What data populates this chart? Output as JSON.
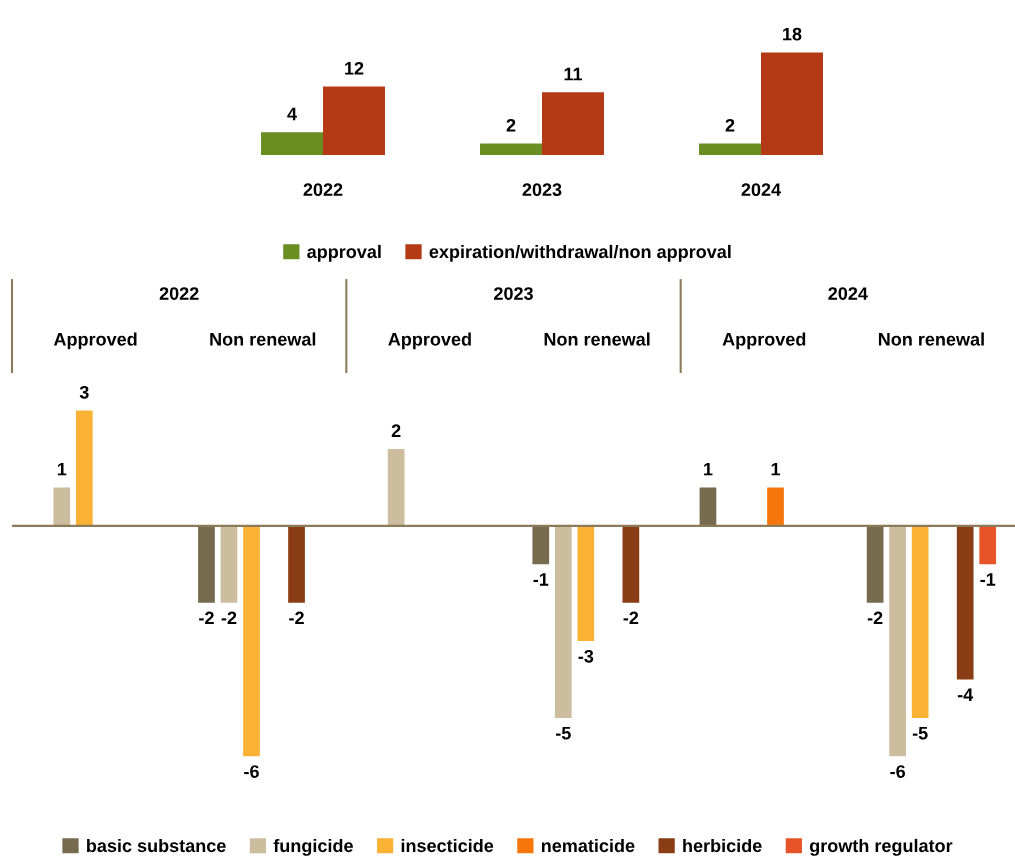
{
  "chart_data": [
    {
      "type": "bar",
      "categories": [
        "2022",
        "2023",
        "2024"
      ],
      "data_labels": true,
      "legend": "bottom",
      "grid": false,
      "tick_labels": "x",
      "series": [
        {
          "name": "approval",
          "color": "#6b8e23",
          "values": [
            4,
            2,
            2
          ]
        },
        {
          "name": "expiration/withdrawal/non approval",
          "color": "#b33a14",
          "values": [
            12,
            11,
            18
          ]
        }
      ]
    },
    {
      "type": "bar",
      "categories": [
        "Approved",
        "Non renewal",
        "Approved",
        "Non renewal",
        "Approved",
        "Non renewal"
      ],
      "annotations": [
        "2022",
        "2023",
        "2024"
      ],
      "ref_lines": [
        {
          "axis": "y",
          "value": 0,
          "color": "#8c7b5a"
        }
      ],
      "data_labels": true,
      "legend": "bottom",
      "grid": false,
      "tick_labels": "x",
      "series": [
        {
          "name": "basic substance",
          "color": "#776b4f",
          "values": [
            null,
            -2,
            null,
            -1,
            1,
            -2
          ]
        },
        {
          "name": "fungicide",
          "color": "#cdbd9f",
          "values": [
            1,
            -2,
            2,
            -5,
            null,
            -6
          ]
        },
        {
          "name": "insecticide",
          "color": "#f9b234",
          "values": [
            3,
            -6,
            null,
            -3,
            null,
            -5
          ]
        },
        {
          "name": "nematicide",
          "color": "#f7760c",
          "values": [
            null,
            null,
            null,
            null,
            1,
            null
          ]
        },
        {
          "name": "herbicide",
          "color": "#8a3c14",
          "values": [
            null,
            -2,
            null,
            -2,
            null,
            -4
          ]
        },
        {
          "name": "growth regulator",
          "color": "#e8542a",
          "values": [
            null,
            null,
            null,
            null,
            null,
            -1
          ]
        }
      ]
    }
  ]
}
